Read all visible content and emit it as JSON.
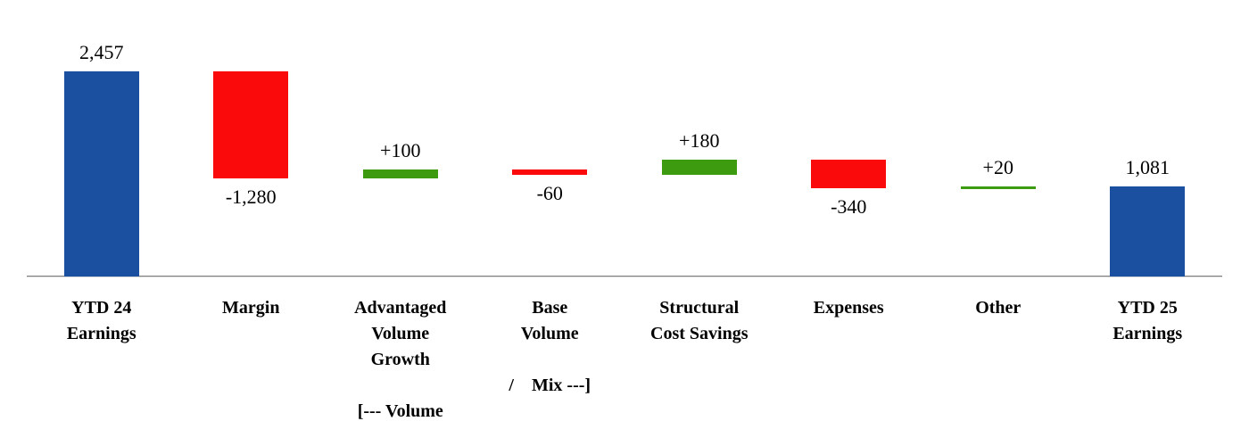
{
  "chart_data": {
    "type": "waterfall",
    "title": "",
    "xlabel": "",
    "ylabel": "",
    "ylim": [
      0,
      2650
    ],
    "grid": false,
    "legend": false,
    "axis_color": "#7f7f7f",
    "palette": {
      "total": "#1b4f9f",
      "increase": "#3c9b0e",
      "decrease": "#fa0a0a"
    },
    "categories": [
      "YTD 24 Earnings",
      "Margin",
      "Advantaged Volume Growth",
      "Base Volume",
      "Structural Cost Savings",
      "Expenses",
      "Other",
      "YTD 25 Earnings"
    ],
    "values": [
      2457,
      -1280,
      100,
      -60,
      180,
      -340,
      20,
      1081
    ],
    "volume_mix_annotation": "[--- Volume / Mix ---]",
    "bars": [
      {
        "category": "YTD 24 Earnings",
        "label_lines": [
          "YTD 24",
          "Earnings"
        ],
        "value": 2457,
        "value_label": "2,457",
        "kind": "total",
        "role": "total",
        "label_side": "above"
      },
      {
        "category": "Margin",
        "label_lines": [
          "Margin"
        ],
        "value": -1280,
        "value_label": "-1,280",
        "kind": "delta",
        "role": "decrease",
        "label_side": "below"
      },
      {
        "category": "Advantaged Volume Growth",
        "label_lines": [
          "Advantaged",
          "Volume",
          "Growth",
          "",
          "[--- Volume"
        ],
        "value": 100,
        "value_label": "+100",
        "kind": "delta",
        "role": "increase",
        "label_side": "above"
      },
      {
        "category": "Base Volume",
        "label_lines": [
          "Base",
          "Volume",
          "",
          "/    Mix ---]"
        ],
        "value": -60,
        "value_label": "-60",
        "kind": "delta",
        "role": "decrease",
        "label_side": "below"
      },
      {
        "category": "Structural Cost Savings",
        "label_lines": [
          "Structural",
          "Cost Savings"
        ],
        "value": 180,
        "value_label": "+180",
        "kind": "delta",
        "role": "increase",
        "label_side": "above"
      },
      {
        "category": "Expenses",
        "label_lines": [
          "Expenses"
        ],
        "value": -340,
        "value_label": "-340",
        "kind": "delta",
        "role": "decrease",
        "label_side": "below"
      },
      {
        "category": "Other",
        "label_lines": [
          "Other"
        ],
        "value": 20,
        "value_label": "+20",
        "kind": "delta",
        "role": "increase",
        "label_side": "above"
      },
      {
        "category": "YTD 25 Earnings",
        "label_lines": [
          "YTD 25",
          "Earnings"
        ],
        "value": 1081,
        "value_label": "1,081",
        "kind": "total",
        "role": "total",
        "label_side": "above"
      }
    ]
  }
}
